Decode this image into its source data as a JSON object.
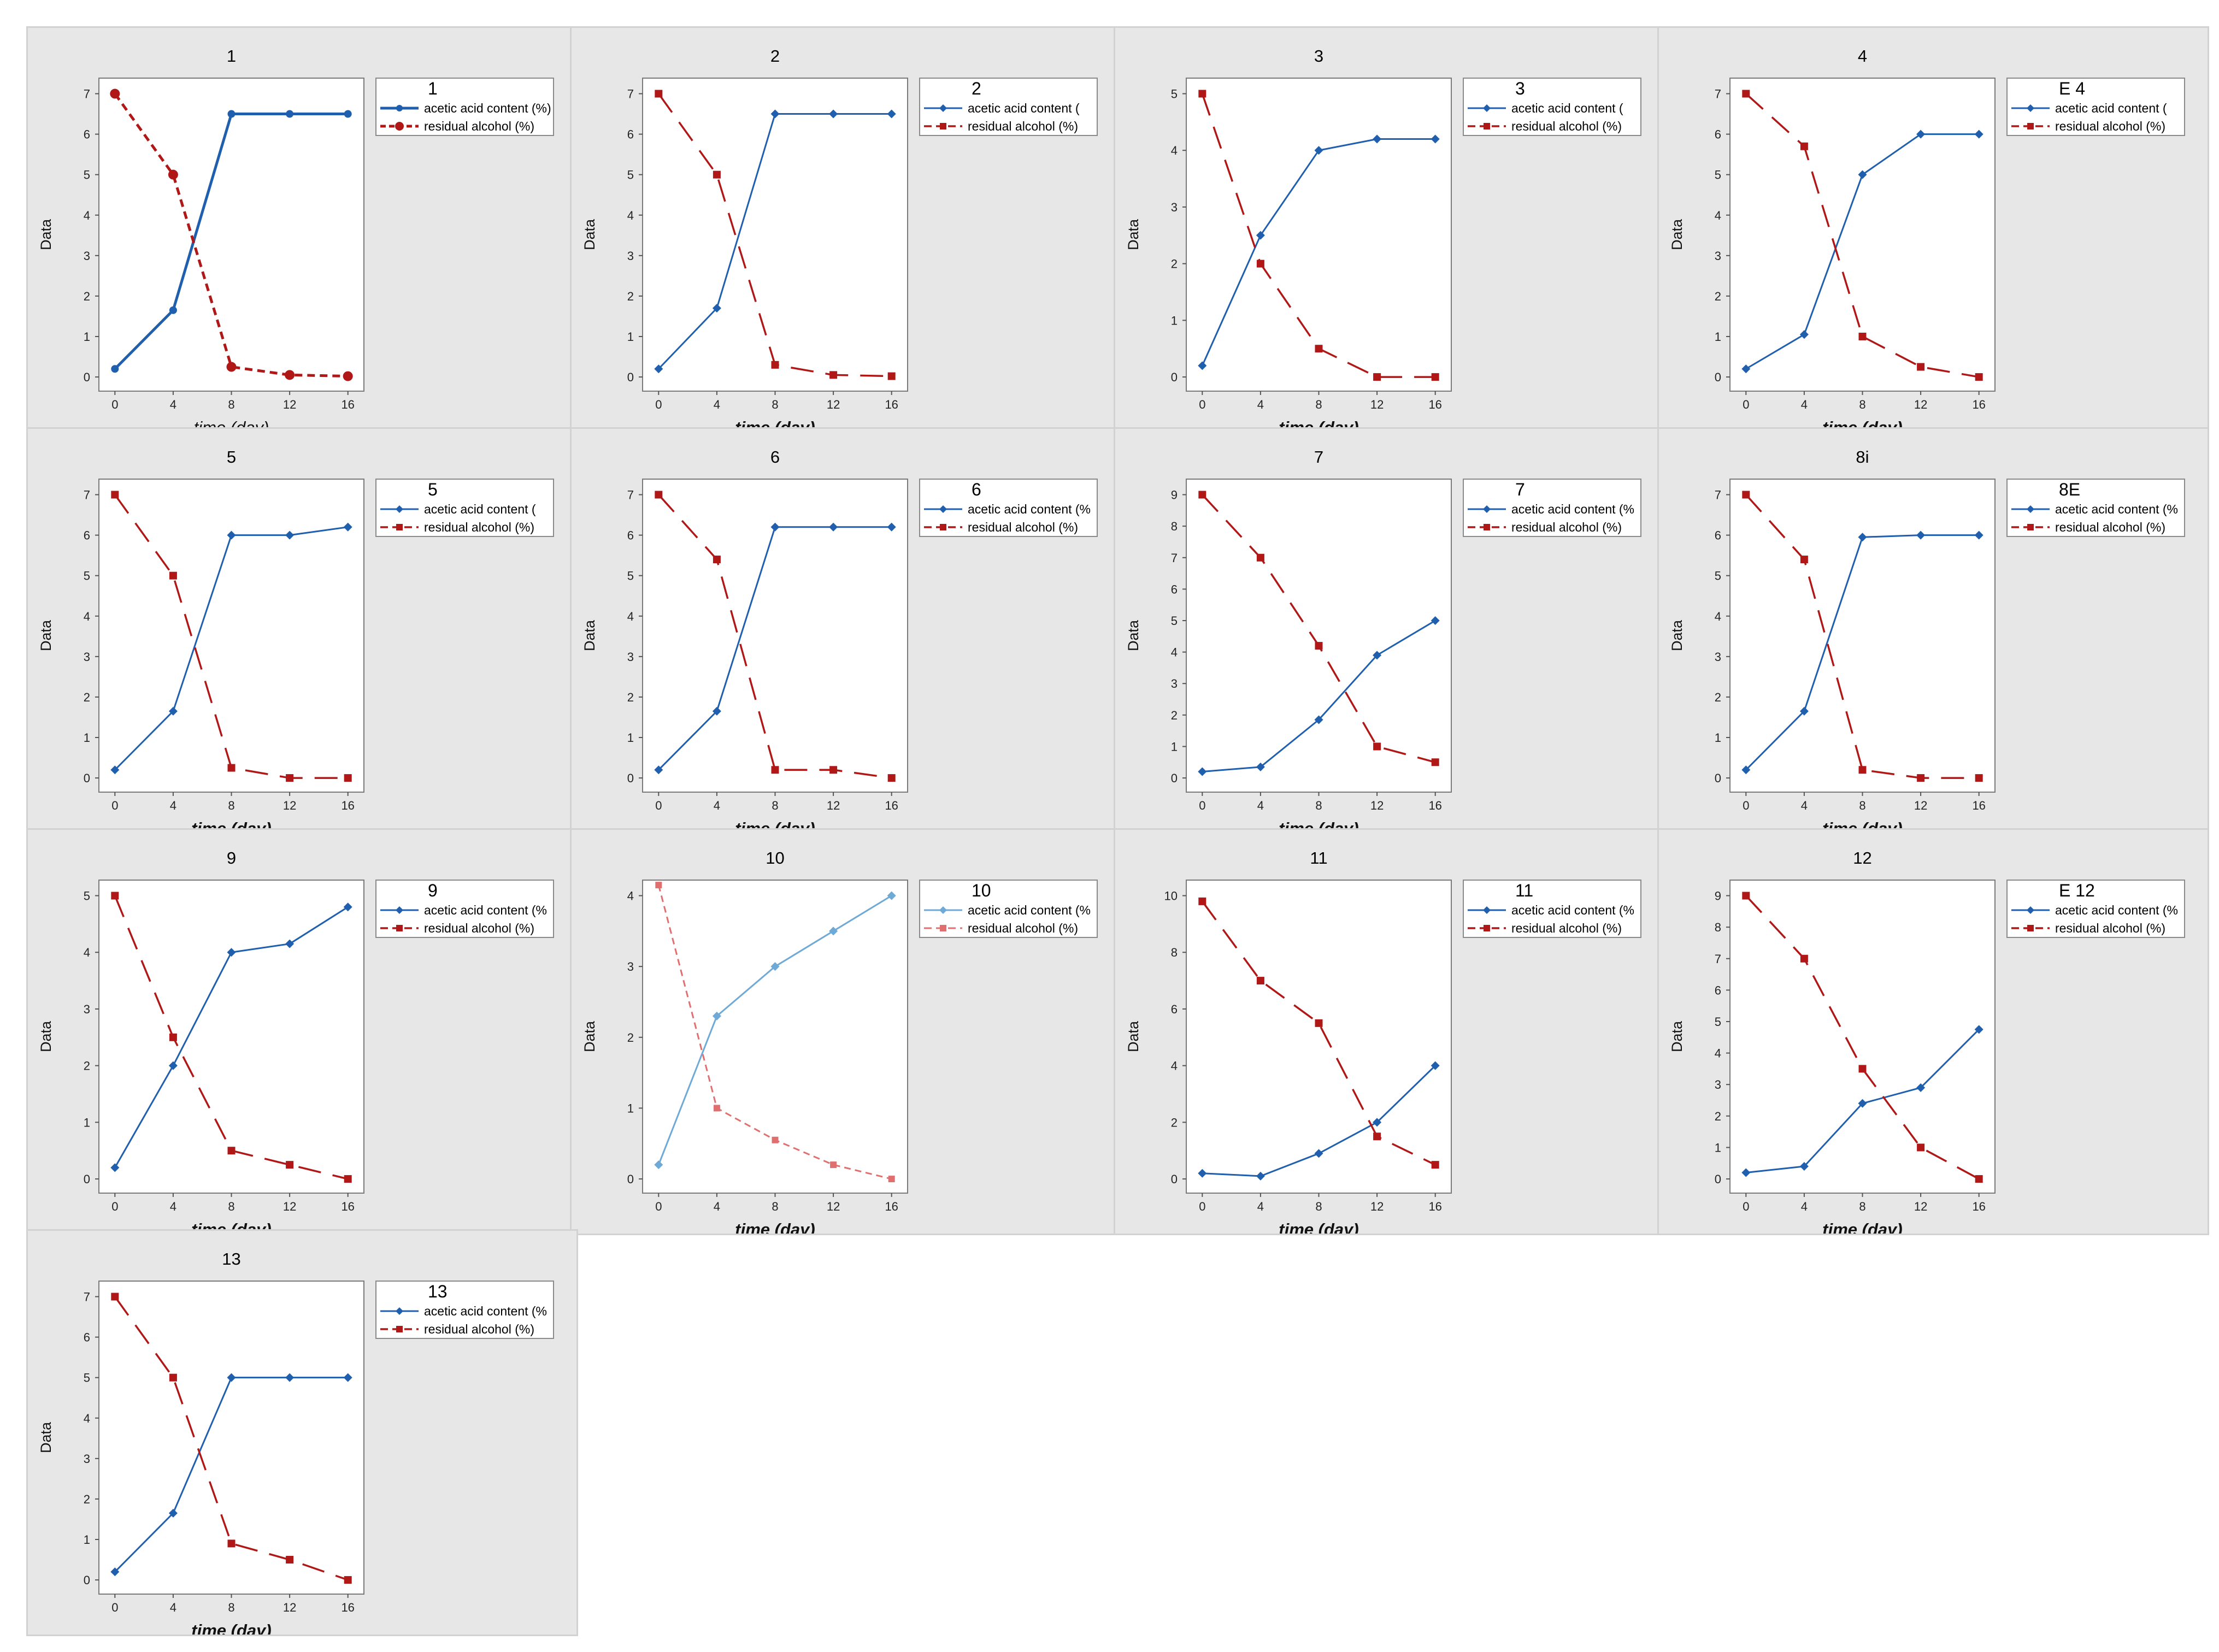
{
  "chart_data": [
    {
      "type": "line",
      "title": "1",
      "legend_title": "1",
      "ylabel": "Data",
      "xlabel": "time (day)",
      "x": [
        0,
        4,
        8,
        12,
        16
      ],
      "ylim": [
        0,
        7
      ],
      "yticks": [
        0,
        1,
        2,
        3,
        4,
        5,
        6,
        7
      ],
      "style": "bold",
      "series": [
        {
          "name": "acetic acid content (%)",
          "values": [
            0.2,
            1.65,
            6.5,
            6.5,
            6.5
          ],
          "color": "#1f5fad"
        },
        {
          "name": "residual alcohol (%)",
          "values": [
            7,
            5,
            0.25,
            0.05,
            0.02
          ],
          "color": "#b01818"
        }
      ]
    },
    {
      "type": "line",
      "title": "2",
      "legend_title": "2",
      "ylabel": "Data",
      "xlabel": "time (day)",
      "x": [
        0,
        4,
        8,
        12,
        16
      ],
      "ylim": [
        0,
        7
      ],
      "yticks": [
        0,
        1,
        2,
        3,
        4,
        5,
        6,
        7
      ],
      "series": [
        {
          "name": "acetic acid content (",
          "values": [
            0.2,
            1.7,
            6.5,
            6.5,
            6.5
          ],
          "color": "#1f5fad"
        },
        {
          "name": "residual alcohol (%)",
          "values": [
            7,
            5,
            0.3,
            0.05,
            0.02
          ],
          "color": "#b01818"
        }
      ]
    },
    {
      "type": "line",
      "title": "3",
      "legend_title": "3",
      "ylabel": "Data",
      "xlabel": "time (day)",
      "x": [
        0,
        4,
        8,
        12,
        16
      ],
      "ylim": [
        0,
        5
      ],
      "yticks": [
        0,
        1,
        2,
        3,
        4,
        5
      ],
      "series": [
        {
          "name": "acetic acid content (",
          "values": [
            0.2,
            2.5,
            4,
            4.2,
            4.2
          ],
          "color": "#1f5fad"
        },
        {
          "name": "residual alcohol (%)",
          "values": [
            5,
            2,
            0.5,
            0,
            0
          ],
          "color": "#b01818"
        }
      ]
    },
    {
      "type": "line",
      "title": "4",
      "legend_title": "E 4",
      "ylabel": "Data",
      "xlabel": "time (day)",
      "x": [
        0,
        4,
        8,
        12,
        16
      ],
      "ylim": [
        0,
        7
      ],
      "yticks": [
        0,
        1,
        2,
        3,
        4,
        5,
        6,
        7
      ],
      "series": [
        {
          "name": "acetic acid content (",
          "values": [
            0.2,
            1.05,
            5,
            6,
            6
          ],
          "color": "#1f5fad"
        },
        {
          "name": "residual alcohol (%)",
          "values": [
            7,
            5.7,
            1,
            0.25,
            0
          ],
          "color": "#b01818"
        }
      ]
    },
    {
      "type": "line",
      "title": "5",
      "legend_title": "5",
      "ylabel": "Data",
      "xlabel": "time (day)",
      "x": [
        0,
        4,
        8,
        12,
        16
      ],
      "ylim": [
        0,
        7
      ],
      "yticks": [
        0,
        1,
        2,
        3,
        4,
        5,
        6,
        7
      ],
      "series": [
        {
          "name": "acetic acid content (",
          "values": [
            0.2,
            1.65,
            6,
            6,
            6.2
          ],
          "color": "#1f5fad"
        },
        {
          "name": "residual alcohol (%)",
          "values": [
            7,
            5,
            0.25,
            0,
            0
          ],
          "color": "#b01818"
        }
      ]
    },
    {
      "type": "line",
      "title": "6",
      "legend_title": "6",
      "ylabel": "Data",
      "xlabel": "time (day)",
      "x": [
        0,
        4,
        8,
        12,
        16
      ],
      "ylim": [
        0,
        7
      ],
      "yticks": [
        0,
        1,
        2,
        3,
        4,
        5,
        6,
        7
      ],
      "series": [
        {
          "name": "acetic acid content (%",
          "values": [
            0.2,
            1.65,
            6.2,
            6.2,
            6.2
          ],
          "color": "#1f5fad"
        },
        {
          "name": "residual alcohol (%)",
          "values": [
            7,
            5.4,
            0.2,
            0.2,
            0
          ],
          "color": "#b01818"
        }
      ]
    },
    {
      "type": "line",
      "title": "7",
      "legend_title": "7",
      "ylabel": "Data",
      "xlabel": "time (day)",
      "x": [
        0,
        4,
        8,
        12,
        16
      ],
      "ylim": [
        0,
        9
      ],
      "yticks": [
        0,
        1,
        2,
        3,
        4,
        5,
        6,
        7,
        8,
        9
      ],
      "series": [
        {
          "name": "acetic acid content (%",
          "values": [
            0.2,
            0.35,
            1.85,
            3.9,
            5
          ],
          "color": "#1f5fad"
        },
        {
          "name": "residual alcohol (%)",
          "values": [
            9,
            7,
            4.2,
            1,
            0.5
          ],
          "color": "#b01818"
        }
      ]
    },
    {
      "type": "line",
      "title": "8i",
      "legend_title": "8E",
      "ylabel": "Data",
      "xlabel": "time (day)",
      "x": [
        0,
        4,
        8,
        12,
        16
      ],
      "ylim": [
        0,
        7
      ],
      "yticks": [
        0,
        1,
        2,
        3,
        4,
        5,
        6,
        7
      ],
      "series": [
        {
          "name": "acetic acid content (%",
          "values": [
            0.2,
            1.65,
            5.95,
            6,
            6
          ],
          "color": "#1f5fad"
        },
        {
          "name": "residual alcohol (%)",
          "values": [
            7,
            5.4,
            0.2,
            0,
            0
          ],
          "color": "#b01818"
        }
      ]
    },
    {
      "type": "line",
      "title": "9",
      "legend_title": "9",
      "ylabel": "Data",
      "xlabel": "time (day)",
      "x": [
        0,
        4,
        8,
        12,
        16
      ],
      "ylim": [
        0,
        5
      ],
      "yticks": [
        0,
        1,
        2,
        3,
        4,
        5
      ],
      "series": [
        {
          "name": "acetic acid content (%",
          "values": [
            0.2,
            2,
            4,
            4.15,
            4.8
          ],
          "color": "#1f5fad"
        },
        {
          "name": "residual alcohol (%)",
          "values": [
            5,
            2.5,
            0.5,
            0.25,
            0
          ],
          "color": "#b01818"
        }
      ]
    },
    {
      "type": "line",
      "title": "10",
      "legend_title": "10",
      "ylabel": "Data",
      "xlabel": "time (day)",
      "x": [
        0,
        4,
        8,
        12,
        16
      ],
      "ylim": [
        0,
        4
      ],
      "yticks": [
        0,
        1,
        2,
        3,
        4
      ],
      "style": "light",
      "series": [
        {
          "name": "acetic acid content (%",
          "values": [
            0.2,
            2.3,
            3,
            3.5,
            4
          ],
          "color": "#6fa9d6"
        },
        {
          "name": "residual alcohol (%)",
          "values": [
            4.15,
            1,
            0.55,
            0.2,
            0
          ],
          "color": "#e07070"
        }
      ]
    },
    {
      "type": "line",
      "title": "11",
      "legend_title": "11",
      "ylabel": "Data",
      "xlabel": "time (day)",
      "x": [
        0,
        4,
        8,
        12,
        16
      ],
      "ylim": [
        0,
        10
      ],
      "yticks": [
        0,
        2,
        4,
        6,
        8,
        10
      ],
      "series": [
        {
          "name": "acetic acid content (%",
          "values": [
            0.2,
            0.1,
            0.9,
            2,
            4
          ],
          "color": "#1f5fad"
        },
        {
          "name": "residual alcohol (%)",
          "values": [
            9.8,
            7,
            5.5,
            1.5,
            0.5
          ],
          "color": "#b01818"
        }
      ]
    },
    {
      "type": "line",
      "title": "12",
      "legend_title": "E 12",
      "ylabel": "Data",
      "xlabel": "time (day)",
      "x": [
        0,
        4,
        8,
        12,
        16
      ],
      "ylim": [
        0,
        9
      ],
      "yticks": [
        0,
        1,
        2,
        3,
        4,
        5,
        6,
        7,
        8,
        9
      ],
      "series": [
        {
          "name": "acetic acid content (%",
          "values": [
            0.2,
            0.4,
            2.4,
            2.9,
            4.75
          ],
          "color": "#1f5fad"
        },
        {
          "name": "residual alcohol (%)",
          "values": [
            9,
            7,
            3.5,
            1,
            0
          ],
          "color": "#b01818"
        }
      ]
    },
    {
      "type": "line",
      "title": "13",
      "legend_title": "13",
      "ylabel": "Data",
      "xlabel": "time (day)",
      "x": [
        0,
        4,
        8,
        12,
        16
      ],
      "ylim": [
        0,
        7
      ],
      "yticks": [
        0,
        1,
        2,
        3,
        4,
        5,
        6,
        7
      ],
      "series": [
        {
          "name": "acetic acid content (%",
          "values": [
            0.2,
            1.65,
            5,
            5,
            5
          ],
          "color": "#1f5fad"
        },
        {
          "name": "residual alcohol (%)",
          "values": [
            7,
            5,
            0.9,
            0.5,
            0
          ],
          "color": "#b01818"
        }
      ]
    }
  ]
}
